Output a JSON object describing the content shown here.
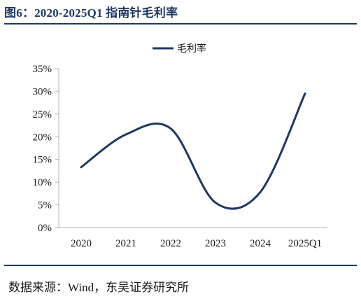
{
  "figure": {
    "title": "图6：2020-2025Q1 指南针毛利率",
    "source": "数据来源：Wind，东吴证券研究所"
  },
  "chart_data": {
    "type": "line",
    "title": "",
    "xlabel": "",
    "ylabel": "",
    "categories": [
      "2020",
      "2021",
      "2022",
      "2023",
      "2024",
      "2025Q1"
    ],
    "series": [
      {
        "name": "毛利率",
        "values": [
          13.3,
          20.5,
          21.8,
          5.5,
          7.8,
          29.5
        ],
        "color": "#1f3864"
      }
    ],
    "ylim": [
      0,
      35
    ],
    "yticks": [
      "0%",
      "5%",
      "10%",
      "15%",
      "20%",
      "25%",
      "30%",
      "35%"
    ],
    "grid": false,
    "legend": "top-center",
    "line_style": "smooth"
  }
}
